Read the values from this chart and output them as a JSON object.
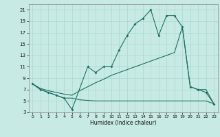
{
  "xlabel": "Humidex (Indice chaleur)",
  "bg_color": "#c8eae4",
  "grid_color": "#a8d8d0",
  "line_color": "#1a7060",
  "xlim": [
    -0.5,
    23.5
  ],
  "ylim": [
    3,
    22
  ],
  "yticks": [
    3,
    5,
    7,
    9,
    11,
    13,
    15,
    17,
    19,
    21
  ],
  "xticks": [
    0,
    1,
    2,
    3,
    4,
    5,
    6,
    7,
    8,
    9,
    10,
    11,
    12,
    13,
    14,
    15,
    16,
    17,
    18,
    19,
    20,
    21,
    22,
    23
  ],
  "line1_x": [
    0,
    1,
    2,
    3,
    4,
    5,
    7,
    8,
    9,
    10,
    11,
    12,
    13,
    14,
    15,
    16,
    17,
    18,
    19,
    20,
    21,
    22,
    23
  ],
  "line1_y": [
    8,
    7,
    6.5,
    6,
    5.5,
    3.5,
    11,
    10,
    11,
    11,
    14,
    16.5,
    18.5,
    19.5,
    21,
    16.5,
    20,
    20,
    18,
    7.5,
    7,
    6.5,
    4.5
  ],
  "line2_x": [
    0,
    1,
    2,
    3,
    4,
    5,
    6,
    7,
    8,
    9,
    10,
    11,
    12,
    13,
    14,
    15,
    16,
    17,
    18,
    19,
    20,
    21,
    22,
    23
  ],
  "line2_y": [
    8,
    7.2,
    6.8,
    6.5,
    6.2,
    6.0,
    6.8,
    7.5,
    8.2,
    8.8,
    9.5,
    10.0,
    10.5,
    11.0,
    11.5,
    12.0,
    12.5,
    13.0,
    13.5,
    18,
    7.5,
    7.0,
    7.0,
    4.5
  ],
  "line3_x": [
    0,
    1,
    2,
    3,
    4,
    5,
    6,
    7,
    8,
    9,
    10,
    11,
    12,
    13,
    14,
    15,
    16,
    17,
    18,
    19,
    20,
    21,
    22,
    23
  ],
  "line3_y": [
    8,
    7.0,
    6.5,
    6.0,
    5.5,
    5.5,
    5.2,
    5.1,
    5.0,
    5.0,
    5.0,
    5.0,
    5.0,
    5.0,
    5.0,
    5.0,
    5.0,
    5.0,
    5.0,
    5.0,
    5.0,
    5.0,
    5.0,
    4.5
  ]
}
